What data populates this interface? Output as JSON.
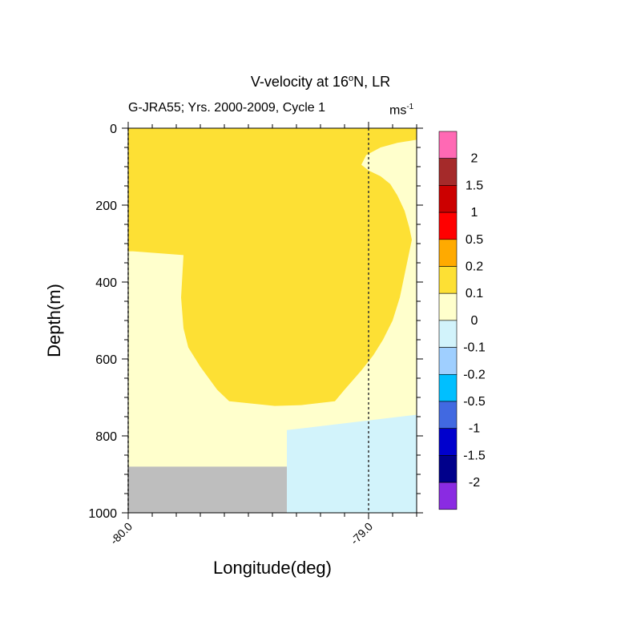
{
  "title_main": "V-velocity at 16",
  "title_deg": "o",
  "title_tail": "N, LR",
  "subtitle": "G-JRA55; Yrs. 2000-2009, Cycle 1",
  "units_base": "ms",
  "units_exp": "-1",
  "colors": {
    "land": "#bebebe",
    "levels": [
      "#8a2be2",
      "#00008b",
      "#0000cd",
      "#4169e1",
      "#00bfff",
      "#9fcfff",
      "#d2f3fb",
      "#ffffcc",
      "#fde034",
      "#ffaa00",
      "#ff0000",
      "#cc0000",
      "#a52a2a",
      "#ff69b4"
    ]
  },
  "chart_data": {
    "type": "heatmap",
    "title": "V-velocity at 16°N, LR",
    "subtitle": "G-JRA55; Yrs. 2000-2009, Cycle 1",
    "units": "ms-1",
    "xlabel": "Longitude(deg)",
    "ylabel": "Depth(m)",
    "xlim": [
      -80.0,
      -78.8
    ],
    "ylim": [
      1000,
      0
    ],
    "x_ticks": [
      -80.0,
      -79.0
    ],
    "x_tick_labels": [
      "-80.0",
      "-79.0"
    ],
    "y_ticks": [
      0,
      200,
      400,
      600,
      800,
      1000
    ],
    "y_tick_labels": [
      "0",
      "200",
      "400",
      "600",
      "800",
      "1000"
    ],
    "reference_line_x": [
      -80.0,
      -79.0
    ],
    "colorbar_labels": [
      "2",
      "1.5",
      "1",
      "0.5",
      "0.2",
      "0.1",
      "0",
      "-0.1",
      "-0.2",
      "-0.5",
      "-1",
      "-1.5",
      "-2"
    ],
    "regions": [
      {
        "range": "0 to 0.1",
        "color": "#ffffcc",
        "polygon": [
          [
            -80.0,
            0
          ],
          [
            -78.8,
            0
          ],
          [
            -78.8,
            1000
          ],
          [
            -80.0,
            1000
          ]
        ]
      },
      {
        "range": "0.1 to 0.2",
        "color": "#fde034",
        "polygon": [
          [
            -80.0,
            0
          ],
          [
            -78.8,
            0
          ],
          [
            -78.8,
            30
          ],
          [
            -78.82,
            32
          ],
          [
            -78.88,
            38
          ],
          [
            -78.95,
            50
          ],
          [
            -79.01,
            70
          ],
          [
            -79.03,
            95
          ],
          [
            -79.0,
            110
          ],
          [
            -78.95,
            125
          ],
          [
            -78.91,
            145
          ],
          [
            -78.88,
            175
          ],
          [
            -78.85,
            215
          ],
          [
            -78.83,
            260
          ],
          [
            -78.82,
            290
          ],
          [
            -78.83,
            320
          ],
          [
            -78.85,
            380
          ],
          [
            -78.87,
            440
          ],
          [
            -78.9,
            500
          ],
          [
            -78.94,
            550
          ],
          [
            -78.98,
            590
          ],
          [
            -79.03,
            630
          ],
          [
            -79.1,
            680
          ],
          [
            -79.14,
            710
          ],
          [
            -79.28,
            720
          ],
          [
            -79.39,
            722
          ],
          [
            -79.58,
            710
          ],
          [
            -79.63,
            680
          ],
          [
            -79.7,
            620
          ],
          [
            -79.75,
            570
          ],
          [
            -79.77,
            520
          ],
          [
            -79.78,
            440
          ],
          [
            -79.77,
            330
          ],
          [
            -79.98,
            320
          ],
          [
            -80.0,
            320
          ]
        ]
      },
      {
        "range": "-0.1 to 0",
        "color": "#d2f3fb",
        "polygon": [
          [
            -79.34,
            785
          ],
          [
            -78.8,
            745
          ],
          [
            -78.8,
            1000
          ],
          [
            -79.34,
            1000
          ]
        ]
      },
      {
        "range": "land",
        "color": "#bebebe",
        "polygon": [
          [
            -80.0,
            880
          ],
          [
            -79.34,
            880
          ],
          [
            -79.34,
            1000
          ],
          [
            -80.0,
            1000
          ]
        ]
      }
    ]
  }
}
